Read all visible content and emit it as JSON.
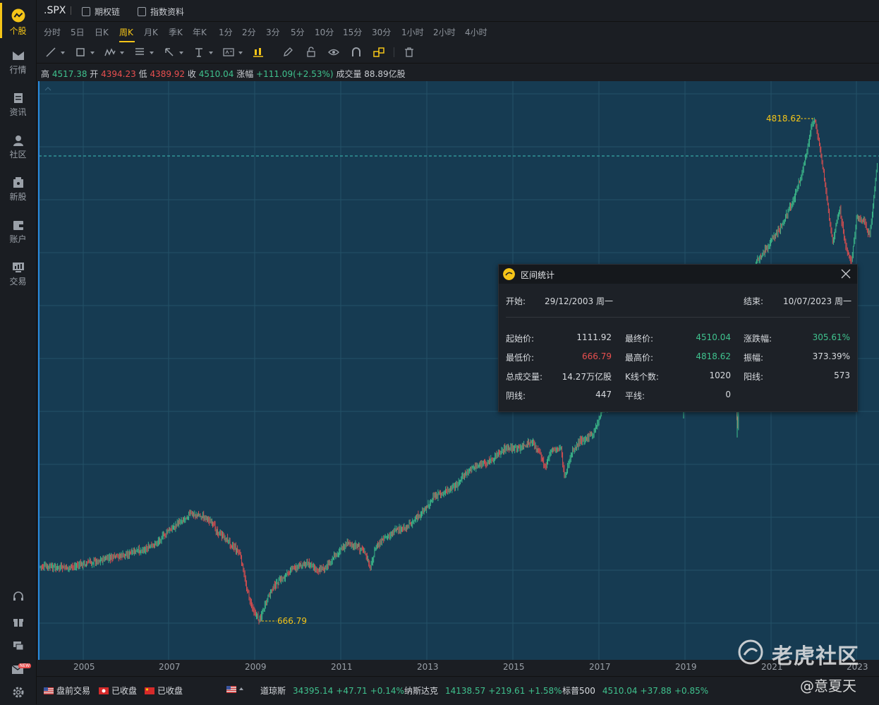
{
  "sidebar": {
    "items": [
      {
        "label": "个股",
        "icon": "stock-icon",
        "active": true
      },
      {
        "label": "行情",
        "icon": "market-icon"
      },
      {
        "label": "资讯",
        "icon": "news-icon"
      },
      {
        "label": "社区",
        "icon": "community-icon"
      },
      {
        "label": "新股",
        "icon": "ipo-icon"
      },
      {
        "label": "账户",
        "icon": "wallet-icon"
      },
      {
        "label": "交易",
        "icon": "trade-icon"
      }
    ],
    "bottom_icons": [
      "support-icon",
      "gift-icon",
      "chat-icon",
      "mail-icon",
      "settings-icon"
    ],
    "mail_badge": "NEW"
  },
  "titlebar": {
    "symbol": ".SPX",
    "links": [
      "期权链",
      "指数资料"
    ]
  },
  "periods": {
    "tabs": [
      "分时",
      "5日",
      "日K",
      "周K",
      "月K",
      "季K",
      "年K",
      "1分",
      "2分",
      "3分",
      "5分",
      "10分",
      "15分",
      "30分",
      "1小时",
      "2小时",
      "4小时"
    ],
    "active": "周K"
  },
  "tools": [
    "line-tool-icon",
    "rect-tool-icon",
    "wave-tool-icon",
    "fib-tool-icon",
    "arrow-tool-icon",
    "text-tool-icon",
    "label-tool-icon",
    "chart-type-icon",
    "pen-icon",
    "lock-icon",
    "eye-icon",
    "magnet-icon",
    "link-icon",
    "trash-icon"
  ],
  "ohlc": {
    "high_label": "高",
    "high": "4517.38",
    "open_label": "开",
    "open": "4394.23",
    "low_label": "低",
    "low": "4389.92",
    "close_label": "收",
    "close": "4510.04",
    "change_label": "涨幅",
    "change": "+111.09(+2.53%)",
    "volume_label": "成交量",
    "volume": "88.89亿股"
  },
  "chart": {
    "high_marker": "4818.62",
    "low_marker": "666.79",
    "x_ticks": [
      "2005",
      "2007",
      "2009",
      "2011",
      "2013",
      "2015",
      "2017",
      "2019",
      "2021",
      "2023"
    ],
    "colors": {
      "up": "#3fc28e",
      "down": "#e84f4f",
      "background": "#163b52",
      "marker": "#f5c518"
    }
  },
  "stats": {
    "title": "区间统计",
    "start_label": "开始:",
    "start": "29/12/2003 周一",
    "end_label": "结束:",
    "end": "10/07/2023 周一",
    "rows": [
      {
        "l1": "起始价:",
        "v1": "1111.92",
        "l2": "最终价:",
        "v2": "4510.04",
        "l3": "涨跌幅:",
        "v3": "305.61%"
      },
      {
        "l1": "最低价:",
        "v1": "666.79",
        "l2": "最高价:",
        "v2": "4818.62",
        "l3": "振幅:",
        "v3": "373.39%"
      },
      {
        "l1": "总成交量:",
        "v1": "14.27万亿股",
        "l2": "K线个数:",
        "v2": "1020",
        "l3": "阳线:",
        "v3": "573"
      },
      {
        "l1": "阴线:",
        "v1": "447",
        "l2": "平线:",
        "v2": "0",
        "l3": "",
        "v3": ""
      }
    ]
  },
  "statusbar": {
    "markets": [
      {
        "label": "盘前交易",
        "flag": "us-flag-icon"
      },
      {
        "label": "已收盘",
        "flag": "hk-flag-icon"
      },
      {
        "label": "已收盘",
        "flag": "cn-flag-icon"
      }
    ],
    "indices": [
      {
        "name": "道琼斯",
        "value": "34395.14",
        "change": "+47.71",
        "pct": "+0.14%"
      },
      {
        "name": "纳斯达克",
        "value": "14138.57",
        "change": "+219.61",
        "pct": "+1.58%"
      },
      {
        "name": "标普500",
        "value": "4510.04",
        "change": "+37.88",
        "pct": "+0.85%"
      }
    ]
  },
  "watermark": {
    "brand": "老虎社区",
    "author": "@意夏天"
  }
}
